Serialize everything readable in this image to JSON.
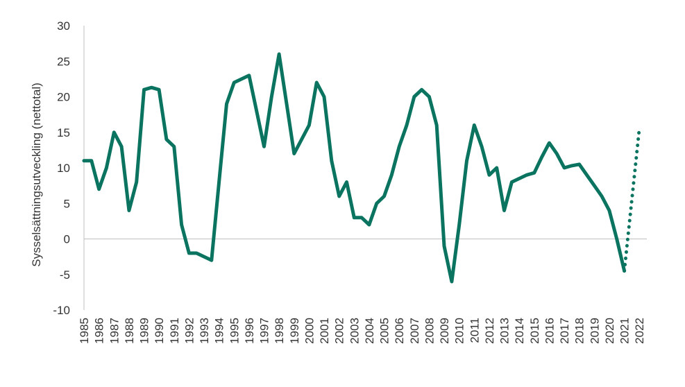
{
  "chart_data": {
    "type": "line",
    "title": "",
    "xlabel": "",
    "ylabel": "Sysselsättningsutveckling (nettotal)",
    "ylim": [
      -10,
      30
    ],
    "yticks": [
      "30",
      "25",
      "20",
      "15",
      "10",
      "5",
      "0",
      "-5",
      "-10"
    ],
    "ytick_values": [
      30,
      25,
      20,
      15,
      10,
      5,
      0,
      -5,
      -10
    ],
    "xticks": [
      "1985",
      "1986",
      "1987",
      "1988",
      "1989",
      "1990",
      "1991",
      "1992",
      "1993",
      "1994",
      "1995",
      "1996",
      "1997",
      "1998",
      "1999",
      "2000",
      "2001",
      "2002",
      "2003",
      "2004",
      "2005",
      "2006",
      "2007",
      "2008",
      "2009",
      "2010",
      "2011",
      "2012",
      "2013",
      "2014",
      "2015",
      "2016",
      "2017",
      "2018",
      "2019",
      "2020",
      "2021",
      "2022"
    ],
    "xlim": [
      1985,
      2022.5
    ],
    "grid": false,
    "legend": "none",
    "series": [
      {
        "style": "solid",
        "color": "#0b7460",
        "x": [
          1985.0,
          1985.5,
          1986.0,
          1986.5,
          1987.0,
          1987.5,
          1988.0,
          1988.5,
          1989.0,
          1989.5,
          1990.0,
          1990.5,
          1991.0,
          1991.5,
          1992.0,
          1992.5,
          1993.0,
          1993.5,
          1994.0,
          1994.5,
          1995.0,
          1995.5,
          1996.0,
          1996.5,
          1997.0,
          1997.5,
          1998.0,
          1998.5,
          1999.0,
          1999.5,
          2000.0,
          2000.5,
          2001.0,
          2001.5,
          2002.0,
          2002.5,
          2003.0,
          2003.5,
          2004.0,
          2004.5,
          2005.0,
          2005.5,
          2006.0,
          2006.5,
          2007.0,
          2007.5,
          2008.0,
          2008.5,
          2009.0,
          2009.5,
          2010.0,
          2010.5,
          2011.0,
          2011.5,
          2012.0,
          2012.5,
          2013.0,
          2013.5,
          2014.0,
          2014.5,
          2015.0,
          2015.5,
          2016.0,
          2016.5,
          2017.0,
          2017.5,
          2018.0,
          2018.5,
          2019.0,
          2019.5,
          2020.0,
          2020.5,
          2021.0
        ],
        "y": [
          11,
          11,
          7,
          10,
          15,
          13,
          4,
          8,
          21,
          21.3,
          21,
          14,
          13,
          2,
          -2,
          -2,
          -2.5,
          -3,
          8,
          19,
          22,
          22.5,
          23,
          18,
          13,
          20,
          26,
          19,
          12,
          14,
          16,
          22,
          20,
          11,
          6,
          8,
          3,
          3,
          2,
          5,
          6,
          9,
          13,
          16,
          20,
          21,
          20,
          16,
          -1,
          -6,
          2,
          11,
          16,
          13,
          9,
          10,
          4,
          8,
          8.5,
          9,
          9.3,
          11.5,
          13.5,
          12,
          10,
          10.3,
          10.5,
          9,
          7.5,
          6,
          4,
          0,
          -4.5
        ]
      },
      {
        "style": "dotted",
        "color": "#0b7460",
        "x": [
          2021.0,
          2022.0
        ],
        "y": [
          -4.5,
          15.5
        ]
      }
    ]
  }
}
